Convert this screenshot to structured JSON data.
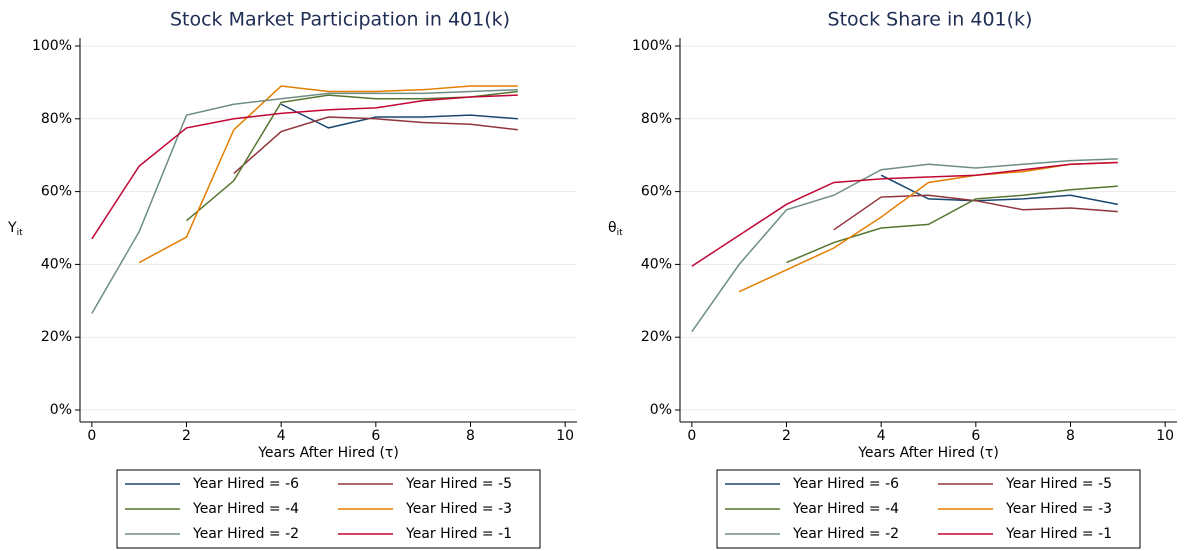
{
  "chart_data": [
    {
      "type": "line",
      "title": "Stock Market Participation in 401(k)",
      "xlabel": "Years After Hired (τ)",
      "ylabel": "Y",
      "ylabel_sub": "it",
      "x": [
        0,
        1,
        2,
        3,
        4,
        5,
        6,
        7,
        8,
        9
      ],
      "xlim": [
        -0.25,
        10.25
      ],
      "xticks": [
        0,
        2,
        4,
        6,
        8,
        10
      ],
      "ylim": [
        -3.3,
        102.2
      ],
      "yticks": [
        {
          "value": 0,
          "label": "0%"
        },
        {
          "value": 20,
          "label": "20%"
        },
        {
          "value": 40,
          "label": "40%"
        },
        {
          "value": 60,
          "label": "60%"
        },
        {
          "value": 80,
          "label": "80%"
        },
        {
          "value": 100,
          "label": "100%"
        }
      ],
      "grid": true,
      "series": [
        {
          "name": "Year Hired = -6",
          "color": "#1a476f",
          "values": [
            null,
            null,
            null,
            null,
            84,
            77.5,
            80.5,
            80.5,
            81,
            80
          ]
        },
        {
          "name": "Year Hired = -5",
          "color": "#90353b",
          "values": [
            null,
            null,
            null,
            65,
            76.5,
            80.5,
            80,
            79,
            78.5,
            77
          ]
        },
        {
          "name": "Year Hired = -4",
          "color": "#55752f",
          "values": [
            null,
            null,
            52,
            63,
            84.5,
            86.5,
            85.5,
            85.5,
            86,
            87.5
          ]
        },
        {
          "name": "Year Hired = -3",
          "color": "#e37e00",
          "values": [
            null,
            40.5,
            47.5,
            77,
            89,
            87.5,
            87.5,
            88,
            89,
            89
          ]
        },
        {
          "name": "Year Hired = -2",
          "color": "#6e8e84",
          "values": [
            26.5,
            49,
            81,
            84,
            85.5,
            87,
            87,
            87,
            87.5,
            88
          ]
        },
        {
          "name": "Year Hired = -1",
          "color": "#c10534",
          "values": [
            47,
            67,
            77.5,
            80,
            81.5,
            82.5,
            83,
            85,
            86,
            86.5
          ]
        }
      ]
    },
    {
      "type": "line",
      "title": "Stock Share in 401(k)",
      "xlabel": "Years After Hired (τ)",
      "ylabel": "θ",
      "ylabel_sub": "it",
      "x": [
        0,
        1,
        2,
        3,
        4,
        5,
        6,
        7,
        8,
        9
      ],
      "xlim": [
        -0.25,
        10.25
      ],
      "xticks": [
        0,
        2,
        4,
        6,
        8,
        10
      ],
      "ylim": [
        -3.3,
        102.2
      ],
      "yticks": [
        {
          "value": 0,
          "label": "0%"
        },
        {
          "value": 20,
          "label": "20%"
        },
        {
          "value": 40,
          "label": "40%"
        },
        {
          "value": 60,
          "label": "60%"
        },
        {
          "value": 80,
          "label": "80%"
        },
        {
          "value": 100,
          "label": "100%"
        }
      ],
      "grid": true,
      "series": [
        {
          "name": "Year Hired = -6",
          "color": "#1a476f",
          "values": [
            null,
            null,
            null,
            null,
            64.5,
            58,
            57.5,
            58,
            59,
            56.5
          ]
        },
        {
          "name": "Year Hired = -5",
          "color": "#90353b",
          "values": [
            null,
            null,
            null,
            49.5,
            58.5,
            59,
            57.5,
            55,
            55.5,
            54.5
          ]
        },
        {
          "name": "Year Hired = -4",
          "color": "#55752f",
          "values": [
            null,
            null,
            40.5,
            46,
            50,
            51,
            58,
            59,
            60.5,
            61.5
          ]
        },
        {
          "name": "Year Hired = -3",
          "color": "#e37e00",
          "values": [
            null,
            32.5,
            38.5,
            44.5,
            53,
            62.5,
            64.5,
            65.5,
            67.5,
            68
          ]
        },
        {
          "name": "Year Hired = -2",
          "color": "#6e8e84",
          "values": [
            21.5,
            40,
            55,
            59,
            66,
            67.5,
            66.5,
            67.5,
            68.5,
            69
          ]
        },
        {
          "name": "Year Hired = -1",
          "color": "#c10534",
          "values": [
            39.5,
            48,
            56.5,
            62.5,
            63.5,
            64,
            64.5,
            66,
            67.5,
            68
          ]
        }
      ]
    }
  ]
}
